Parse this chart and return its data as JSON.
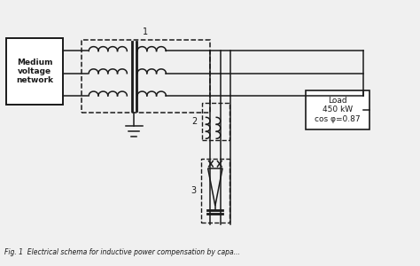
{
  "bg_color": "#f0f0f0",
  "line_color": "#1a1a1a",
  "box_color": "#ffffff",
  "medium_voltage_label": "Medium\nvoltage\nnetwork",
  "load_label": "Load\n450 kW\ncos φ=0.87",
  "label_1": "1",
  "label_2": "2",
  "label_3": "3",
  "caption": "Fig. 1  Electrical schema for inductive power compensation by capa..."
}
